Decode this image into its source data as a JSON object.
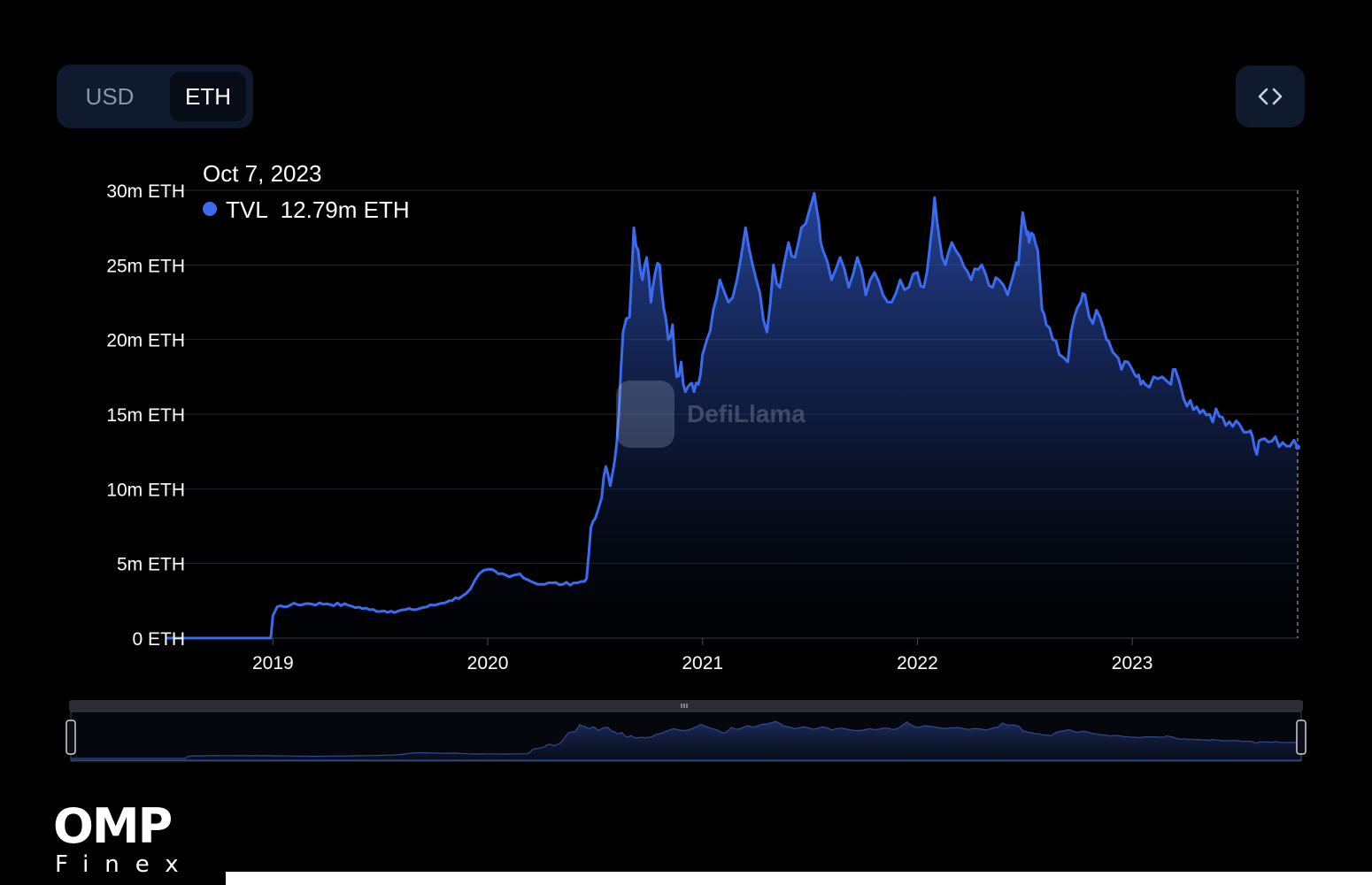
{
  "currency_toggle": {
    "options": [
      "USD",
      "ETH"
    ],
    "selected": "ETH"
  },
  "embed_button_icon": "code-brackets-icon",
  "tooltip": {
    "date": "Oct 7, 2023",
    "series_name": "TVL",
    "value": "12.79m ETH"
  },
  "watermark": "DefiLlama",
  "brand": {
    "name": "OMP",
    "sub": "Finex"
  },
  "colors": {
    "line": "#3b6cf0",
    "background": "#000000",
    "button_bg": "#0f1a2e"
  },
  "chart_data": {
    "type": "area",
    "title": "",
    "xlabel": "",
    "ylabel": "",
    "y_unit": "m ETH",
    "y_tick_labels": [
      "0 ETH",
      "5m ETH",
      "10m ETH",
      "15m ETH",
      "20m ETH",
      "25m ETH",
      "30m ETH"
    ],
    "y_ticks": [
      0,
      5,
      10,
      15,
      20,
      25,
      30
    ],
    "x_tick_labels": [
      "2019",
      "2020",
      "2021",
      "2022",
      "2023"
    ],
    "x_ticks": [
      2019.0,
      2020.0,
      2021.0,
      2022.0,
      2023.0
    ],
    "xlim": [
      2018.5,
      2023.77
    ],
    "ylim": [
      0,
      30
    ],
    "grid": true,
    "legend": "none",
    "series": [
      {
        "name": "TVL",
        "x": [
          2018.5,
          2018.99,
          2019.0,
          2019.02,
          2019.08,
          2019.15,
          2019.25,
          2019.35,
          2019.45,
          2019.55,
          2019.65,
          2019.75,
          2019.82,
          2019.88,
          2019.92,
          2019.96,
          2020.0,
          2020.05,
          2020.1,
          2020.15,
          2020.2,
          2020.25,
          2020.3,
          2020.35,
          2020.4,
          2020.45,
          2020.46,
          2020.48,
          2020.5,
          2020.53,
          2020.55,
          2020.57,
          2020.59,
          2020.61,
          2020.63,
          2020.66,
          2020.68,
          2020.7,
          2020.72,
          2020.74,
          2020.76,
          2020.78,
          2020.8,
          2020.82,
          2020.84,
          2020.86,
          2020.88,
          2020.9,
          2020.92,
          2020.94,
          2020.96,
          2020.98,
          2021.0,
          2021.02,
          2021.05,
          2021.08,
          2021.12,
          2021.16,
          2021.2,
          2021.25,
          2021.3,
          2021.33,
          2021.36,
          2021.4,
          2021.43,
          2021.46,
          2021.5,
          2021.52,
          2021.54,
          2021.56,
          2021.6,
          2021.64,
          2021.68,
          2021.72,
          2021.76,
          2021.8,
          2021.84,
          2021.88,
          2021.92,
          2021.96,
          2022.0,
          2022.03,
          2022.06,
          2022.08,
          2022.1,
          2022.13,
          2022.16,
          2022.2,
          2022.25,
          2022.3,
          2022.35,
          2022.38,
          2022.42,
          2022.45,
          2022.47,
          2022.49,
          2022.51,
          2022.52,
          2022.54,
          2022.56,
          2022.58,
          2022.6,
          2022.63,
          2022.66,
          2022.7,
          2022.73,
          2022.76,
          2022.78,
          2022.8,
          2022.85,
          2022.88,
          2022.9,
          2022.92,
          2022.95,
          2022.98,
          2023.0,
          2023.02,
          2023.04,
          2023.06,
          2023.1,
          2023.14,
          2023.18,
          2023.2,
          2023.24,
          2023.3,
          2023.36,
          2023.42,
          2023.5,
          2023.54,
          2023.56,
          2023.58,
          2023.6,
          2023.65,
          2023.7,
          2023.77
        ],
        "values": [
          0,
          0,
          1.5,
          2.1,
          2.2,
          2.3,
          2.3,
          2.2,
          1.9,
          1.8,
          1.9,
          2.2,
          2.5,
          2.8,
          3.3,
          4.3,
          4.6,
          4.3,
          4.1,
          4.3,
          3.8,
          3.6,
          3.7,
          3.6,
          3.7,
          3.8,
          4.0,
          7.4,
          8.0,
          9.4,
          11.5,
          10.2,
          11.8,
          15.0,
          20.5,
          21.5,
          27.5,
          26.0,
          24.0,
          25.5,
          22.5,
          24.5,
          25.0,
          22.0,
          20.0,
          21.0,
          17.5,
          18.5,
          16.5,
          17.0,
          16.5,
          17.0,
          19.0,
          20.0,
          22.0,
          24.0,
          22.5,
          24.0,
          27.5,
          24.0,
          20.5,
          25.0,
          23.5,
          26.5,
          25.5,
          27.5,
          28.8,
          29.8,
          28.0,
          26.0,
          24.0,
          25.5,
          23.5,
          25.5,
          23.0,
          24.5,
          23.0,
          22.5,
          24.0,
          23.5,
          24.5,
          23.5,
          26.5,
          29.5,
          27.0,
          25.0,
          26.5,
          25.5,
          24.0,
          25.0,
          23.5,
          24.0,
          23.0,
          24.5,
          25.0,
          28.5,
          27.0,
          26.5,
          27.0,
          26.0,
          22.0,
          21.0,
          20.0,
          19.0,
          18.5,
          21.5,
          22.5,
          23.0,
          21.5,
          21.5,
          20.0,
          19.5,
          19.0,
          18.0,
          18.5,
          18.0,
          17.5,
          17.0,
          17.0,
          17.5,
          17.5,
          17.0,
          18.0,
          16.0,
          15.5,
          15.0,
          14.8,
          14.3,
          13.8,
          13.5,
          12.3,
          13.3,
          13.2,
          13.1,
          12.79
        ]
      }
    ],
    "brush_window": [
      2018.5,
      2023.77
    ]
  }
}
